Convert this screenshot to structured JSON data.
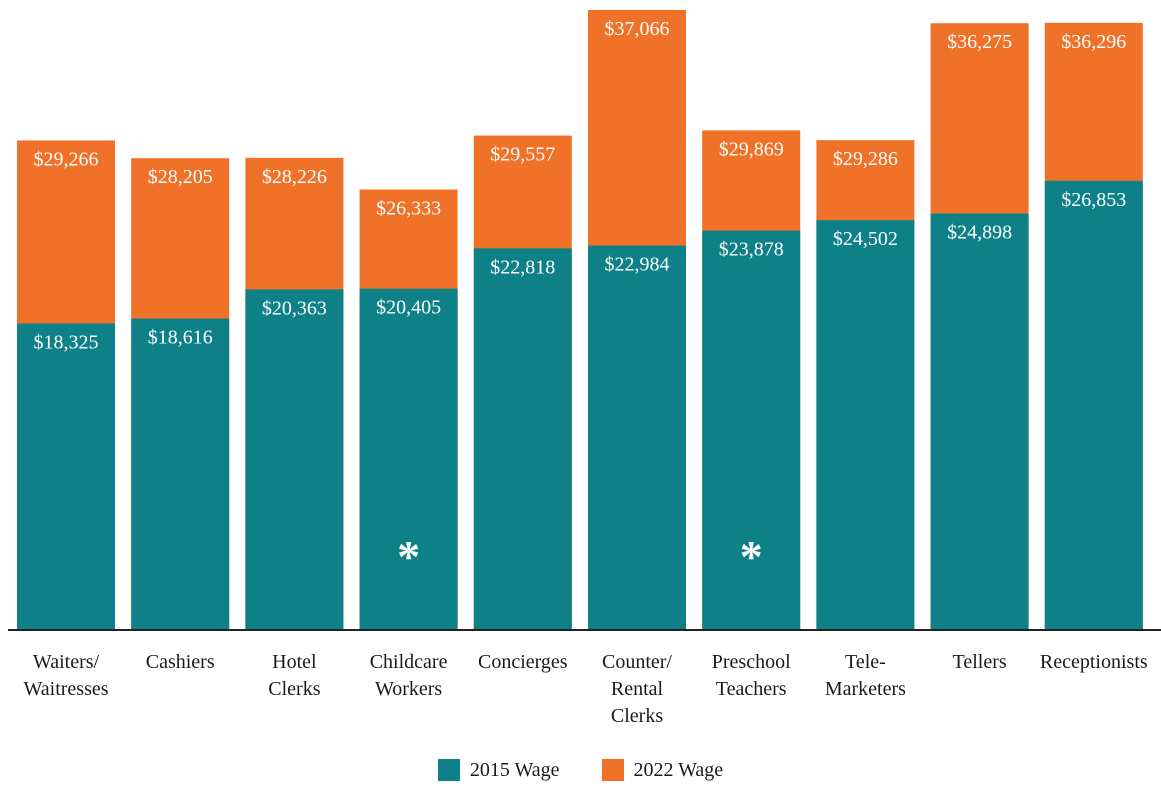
{
  "colors": {
    "wage_2015": "#0e8188",
    "wage_2022": "#f07128",
    "axis": "#222222",
    "bar_label": "#ffffff",
    "category_label": "#1a1a1a",
    "marker": "#ffffff"
  },
  "legend": {
    "items": [
      {
        "label": "2015 Wage",
        "color_key": "wage_2015"
      },
      {
        "label": "2022 Wage",
        "color_key": "wage_2022"
      }
    ]
  },
  "chart_data": {
    "type": "bar",
    "stacked": false,
    "overlapping": true,
    "title": "",
    "xlabel": "",
    "ylabel": "",
    "ylim": [
      0,
      37066
    ],
    "grid": false,
    "legend_position": "bottom-center",
    "categories": [
      [
        "Waiters/",
        "Waitresses"
      ],
      [
        "Cashiers"
      ],
      [
        "Hotel",
        "Clerks"
      ],
      [
        "Childcare",
        "Workers"
      ],
      [
        "Concierges"
      ],
      [
        "Counter/",
        "Rental",
        "Clerks"
      ],
      [
        "Preschool",
        "Teachers"
      ],
      [
        "Tele-",
        "Marketers"
      ],
      [
        "Tellers"
      ],
      [
        "Receptionists"
      ]
    ],
    "series": [
      {
        "name": "2015 Wage",
        "values": [
          18325,
          18616,
          20363,
          20405,
          22818,
          22984,
          23878,
          24502,
          24898,
          26853
        ],
        "labels": [
          "$18,325",
          "$18,616",
          "$20,363",
          "$20,405",
          "$22,818",
          "$22,984",
          "$23,878",
          "$24,502",
          "$24,898",
          "$26,853"
        ]
      },
      {
        "name": "2022 Wage",
        "values": [
          29266,
          28205,
          28226,
          26333,
          29557,
          37066,
          29869,
          29286,
          36275,
          36296
        ],
        "labels": [
          "$29,266",
          "$28,205",
          "$28,226",
          "$26,333",
          "$29,557",
          "$37,066",
          "$29,869",
          "$29,286",
          "$36,275",
          "$36,296"
        ]
      }
    ],
    "markers": [
      {
        "category_index": 3,
        "symbol": "*"
      },
      {
        "category_index": 6,
        "symbol": "*"
      }
    ]
  }
}
